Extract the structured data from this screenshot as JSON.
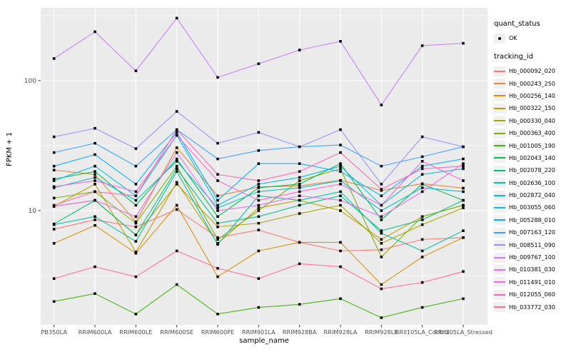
{
  "legend": {
    "quant_status_title": "quant_status",
    "quant_status_items": [
      {
        "label": "OK",
        "marker": "black-point"
      }
    ],
    "tracking_id_title": "tracking_id"
  },
  "chart_data": {
    "type": "line",
    "title": "",
    "xlabel": "sample_name",
    "ylabel": "FPKM + 1",
    "y_scale": "log10",
    "ylim": [
      1.3,
      360
    ],
    "y_ticks": [
      100,
      10
    ],
    "minor_gridlines_at": [
      316,
      31.6,
      3.16
    ],
    "grid": "white major and minor on gray panel",
    "panel_background": "#EBEBEB",
    "gridline_color": "#FFFFFF",
    "tick_label_color": "#4D4D4D",
    "point_marker": "small black square (quant_status OK)",
    "legend_position": "right",
    "categories": [
      "PB350LA",
      "RRIM600LA",
      "RRIM600LE",
      "RRIM600SE",
      "RRIM600PE",
      "RRIM901LA",
      "RRIM928BA",
      "RRIM928LA",
      "RRIM928LE",
      "RRII105LA_Control",
      "RRII105LA_Stressed"
    ],
    "series": [
      {
        "name": "Hb_000092_020",
        "color": "#F8766D",
        "values": [
          7.2,
          8.5,
          7.5,
          10.2,
          6.2,
          7.1,
          5.7,
          4.9,
          5.0,
          6.0,
          6.2
        ]
      },
      {
        "name": "Hb_000243_250",
        "color": "#EA8331",
        "values": [
          20.5,
          19,
          8.2,
          30.5,
          13,
          15.2,
          15.5,
          17.1,
          14.3,
          16.1,
          14.9
        ]
      },
      {
        "name": "Hb_000256_140",
        "color": "#D89000",
        "values": [
          5.6,
          7.7,
          4.7,
          11,
          3.1,
          4.9,
          5.7,
          5.7,
          2.7,
          4.4,
          6.2
        ]
      },
      {
        "name": "Hb_000322_150",
        "color": "#C09B00",
        "values": [
          10.8,
          16,
          4.8,
          16.5,
          5.6,
          10.5,
          12,
          10,
          6.0,
          9.0,
          11
        ]
      },
      {
        "name": "Hb_000330_040",
        "color": "#A3A500",
        "values": [
          10.8,
          12,
          6.5,
          16,
          7.5,
          8.0,
          9.5,
          11,
          5.6,
          7.8,
          10.5
        ]
      },
      {
        "name": "Hb_000363_400",
        "color": "#7CAE00",
        "values": [
          12.5,
          14,
          8.0,
          22,
          6.0,
          10,
          17,
          21,
          4.4,
          9.0,
          11
        ]
      },
      {
        "name": "Hb_001005_190",
        "color": "#39B600",
        "values": [
          2.0,
          2.3,
          1.6,
          2.7,
          1.6,
          1.8,
          1.9,
          2.1,
          1.5,
          1.8,
          2.1
        ]
      },
      {
        "name": "Hb_002043_140",
        "color": "#00BB4E",
        "values": [
          17.5,
          20,
          11,
          25,
          9.0,
          15,
          16,
          23,
          8.5,
          16,
          12
        ]
      },
      {
        "name": "Hb_002078_220",
        "color": "#00BF7D",
        "values": [
          7.9,
          12,
          6.5,
          21,
          8.0,
          9.0,
          11,
          13,
          7.0,
          8.5,
          12
        ]
      },
      {
        "name": "Hb_002636_100",
        "color": "#00C1A3",
        "values": [
          7.8,
          9.0,
          5.8,
          20,
          5.5,
          13,
          12,
          14,
          6.7,
          4.9,
          7.0
        ]
      },
      {
        "name": "Hb_002872_040",
        "color": "#00BFC4",
        "values": [
          15,
          18,
          12,
          24,
          10.5,
          14,
          15,
          17,
          10,
          15,
          14
        ]
      },
      {
        "name": "Hb_003055_060",
        "color": "#00BAE0",
        "values": [
          17,
          22,
          13,
          38,
          11,
          16,
          18,
          22,
          11,
          19,
          21
        ]
      },
      {
        "name": "Hb_005288_010",
        "color": "#00B0F6",
        "values": [
          22,
          27,
          16,
          40,
          12,
          23,
          23,
          20,
          13,
          22,
          25
        ]
      },
      {
        "name": "Hb_007163_120",
        "color": "#35A2FF",
        "values": [
          28,
          33,
          22,
          42,
          25,
          29,
          31,
          32,
          22,
          26,
          31
        ]
      },
      {
        "name": "Hb_008511_090",
        "color": "#9590FF",
        "values": [
          37,
          43,
          30,
          58,
          33,
          40,
          31,
          42,
          16,
          37,
          31
        ]
      },
      {
        "name": "Hb_009767_100",
        "color": "#C77CFF",
        "values": [
          148,
          238,
          119,
          303,
          106,
          135,
          172,
          201,
          65,
          186,
          194
        ]
      },
      {
        "name": "Hb_010381_030",
        "color": "#E76BF3",
        "values": [
          10.8,
          12,
          9.0,
          28,
          10,
          11,
          13,
          12,
          9.0,
          14,
          23
        ]
      },
      {
        "name": "Hb_011491_010",
        "color": "#FA62DB",
        "values": [
          15.3,
          17,
          14,
          38,
          17,
          12,
          14,
          16,
          11,
          24,
          17
        ]
      },
      {
        "name": "Hb_012055_060",
        "color": "#FF62BC",
        "values": [
          11,
          14,
          13,
          42,
          19,
          17,
          20,
          28,
          14.6,
          21,
          22
        ]
      },
      {
        "name": "Hb_033772_030",
        "color": "#FF6A98",
        "values": [
          3.0,
          3.7,
          3.1,
          4.9,
          3.6,
          3.0,
          3.9,
          3.7,
          2.5,
          2.8,
          3.4
        ]
      }
    ]
  }
}
